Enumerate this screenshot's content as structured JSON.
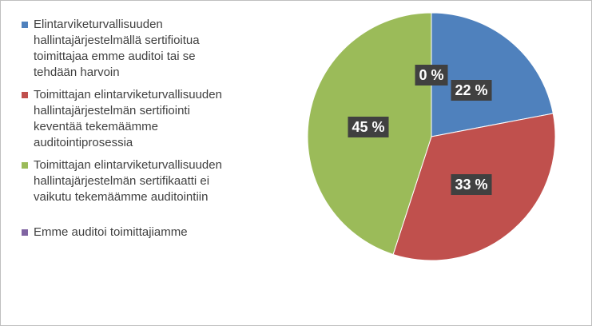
{
  "chart_data": {
    "type": "pie",
    "title": "",
    "categories": [
      "Elintarviketurvallisuuden hallintajärjestelmällä sertifioitua toimittajaa emme auditoi tai se tehdään harvoin",
      "Toimittajan elintarviketurvallisuuden hallintajärjestelmän sertifiointi keventää tekemäämme auditointiprosessia",
      "Toimittajan elintarviketurvallisuuden hallintajärjestelmän sertifikaatti ei vaikutu tekemäämme auditointiin",
      "Emme auditoi toimittajiamme"
    ],
    "values": [
      22,
      33,
      45,
      0
    ],
    "data_labels": [
      "22 %",
      "33 %",
      "45 %",
      "0 %"
    ],
    "colors": [
      "#4f81bd",
      "#c0504d",
      "#9bbb59",
      "#8064a2"
    ],
    "legend_position": "left"
  },
  "legend": {
    "items": [
      {
        "lines": [
          "Elintarviketurvallisuuden",
          "hallintajärjestelmällä sertifioitua",
          "toimittajaa emme auditoi tai se",
          "tehdään harvoin"
        ]
      },
      {
        "lines": [
          "Toimittajan elintarviketurvallisuuden",
          "hallintajärjestelmän sertifiointi",
          "keventää tekemäämme",
          "auditointiprosessia"
        ]
      },
      {
        "lines": [
          "Toimittajan elintarviketurvallisuuden",
          "hallintajärjestelmän sertifikaatti ei",
          "vaikutu tekemäämme auditointiin"
        ]
      },
      {
        "lines": [
          "Emme auditoi toimittajiamme"
        ]
      }
    ]
  }
}
